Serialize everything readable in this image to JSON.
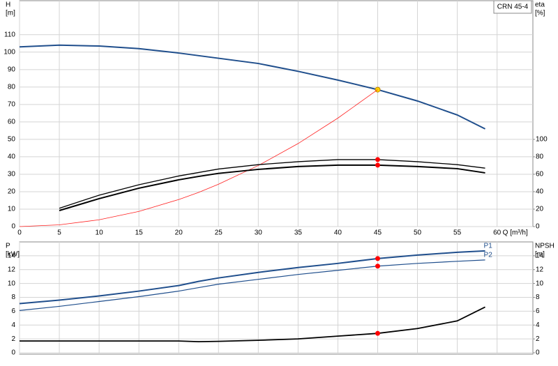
{
  "chart_data": [
    {
      "type": "line",
      "title": "CRN 45-4",
      "xlabel": "Q [m³/h]",
      "ylabel": "H",
      "ylabel_unit": "[m]",
      "y2label": "eta",
      "y2label_unit": "[%]",
      "x": [
        0,
        5,
        10,
        15,
        20,
        22.5,
        25,
        30,
        35,
        40,
        45,
        50,
        55,
        58.5
      ],
      "xlim": [
        0,
        64.5
      ],
      "xticks": [
        0,
        5,
        10,
        15,
        20,
        25,
        30,
        35,
        40,
        45,
        50,
        55,
        60
      ],
      "ylim": [
        0,
        129.5
      ],
      "yticks": [
        0,
        10,
        20,
        30,
        40,
        50,
        60,
        70,
        80,
        90,
        100,
        110
      ],
      "y2lim": [
        0,
        259
      ],
      "y2ticks": [
        0,
        20,
        40,
        60,
        80,
        100
      ],
      "grid": true,
      "operating_point": {
        "x": 45,
        "y": 78.5
      },
      "series": [
        {
          "color": "#1f4e8c",
          "width": 2,
          "marker_color": "#ffd700",
          "values": [
            103,
            104,
            103.5,
            102,
            99.5,
            98,
            96.5,
            93.5,
            89,
            84,
            78.5,
            72,
            64,
            56
          ]
        },
        {
          "color": "#ff2020",
          "width": 0.8,
          "values": [
            0,
            1,
            3.9,
            8.7,
            15.5,
            19.6,
            24.3,
            35,
            47.6,
            62.2,
            78.5,
            null,
            null,
            null
          ]
        },
        {
          "color": "#000000",
          "width": 1.3,
          "axis": "y2",
          "marker_color": "#ff0000",
          "values": [
            null,
            21,
            36,
            48,
            58,
            62,
            66,
            71,
            74.4,
            76.8,
            76.8,
            74.4,
            71,
            67
          ]
        },
        {
          "color": "#000000",
          "width": 2,
          "axis": "y2",
          "marker_color": "#ff0000",
          "values": [
            null,
            18.4,
            32,
            44,
            53.6,
            57.5,
            61,
            65.6,
            68.8,
            70.4,
            70.4,
            68.8,
            66.4,
            61.6
          ]
        }
      ]
    },
    {
      "type": "line",
      "ylabel": "P",
      "ylabel_unit": "[kW]",
      "y2label": "NPSH",
      "y2label_unit": "[m]",
      "x": [
        0,
        5,
        10,
        15,
        20,
        22.5,
        25,
        30,
        35,
        40,
        45,
        50,
        55,
        58.5
      ],
      "xlim": [
        0,
        64.5
      ],
      "xticks": [
        0,
        5,
        10,
        15,
        20,
        25,
        30,
        35,
        40,
        45,
        50,
        55,
        60
      ],
      "ylim": [
        -0.2,
        16
      ],
      "yticks": [
        0,
        2,
        4,
        6,
        8,
        10,
        12,
        14
      ],
      "y2lim": [
        -0.2,
        16
      ],
      "y2ticks": [
        0,
        2,
        4,
        6,
        8,
        10,
        12,
        14
      ],
      "grid": true,
      "operating_point": {
        "x": 45
      },
      "series": [
        {
          "name": "P1",
          "color": "#1f4e8c",
          "width": 2,
          "marker_color": "#ff0000",
          "values": [
            7.1,
            7.6,
            8.2,
            8.9,
            9.7,
            10.3,
            10.8,
            11.6,
            12.3,
            12.9,
            13.6,
            14.1,
            14.5,
            14.7
          ]
        },
        {
          "name": "P2",
          "color": "#1f4e8c",
          "width": 1.2,
          "marker_color": "#ff0000",
          "values": [
            6.1,
            6.7,
            7.4,
            8.1,
            8.9,
            9.4,
            9.9,
            10.6,
            11.3,
            11.9,
            12.5,
            12.9,
            13.2,
            13.4
          ]
        },
        {
          "color": "#000000",
          "width": 1.8,
          "axis": "y2",
          "marker_color": "#ff0000",
          "values": [
            1.7,
            1.7,
            1.7,
            1.7,
            1.7,
            1.6,
            1.65,
            1.8,
            2.0,
            2.4,
            2.8,
            3.5,
            4.6,
            6.6
          ]
        }
      ]
    }
  ]
}
